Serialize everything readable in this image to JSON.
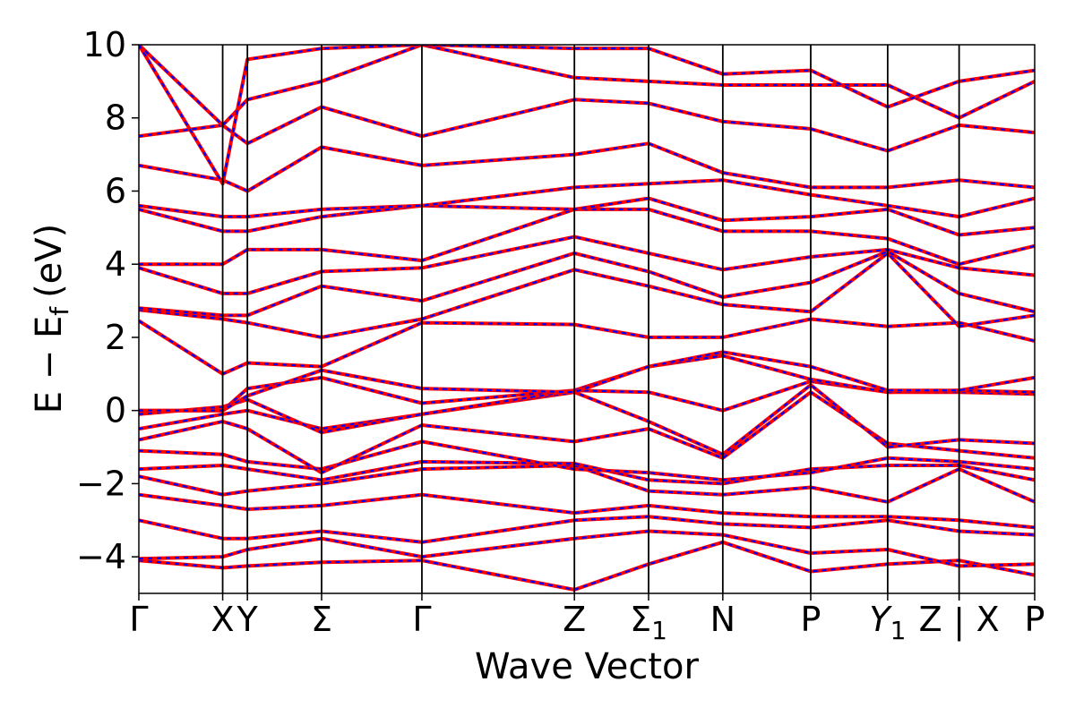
{
  "chart_data": {
    "type": "line",
    "title": "",
    "xlabel": "Wave Vector",
    "ylabel": "E − E_f (eV)",
    "ylabel_parts": {
      "main": "E − E",
      "sub": "f",
      "unit": "(eV)"
    },
    "ylim": [
      -5,
      10
    ],
    "y_ticks": [
      {
        "value": 10,
        "label": "10"
      },
      {
        "value": 8,
        "label": "8"
      },
      {
        "value": 6,
        "label": "6"
      },
      {
        "value": 4,
        "label": "4"
      },
      {
        "value": 2,
        "label": "2"
      },
      {
        "value": 0,
        "label": "0"
      },
      {
        "value": -2,
        "label": "−2"
      },
      {
        "value": -4,
        "label": "−4"
      }
    ],
    "k_path": {
      "range": [
        0,
        3.26
      ],
      "points": [
        {
          "k": 0.0,
          "label": "Γ"
        },
        {
          "k": 0.305,
          "label": "X"
        },
        {
          "k": 0.395,
          "label": "Y"
        },
        {
          "k": 0.665,
          "label": "Σ"
        },
        {
          "k": 1.03,
          "label": "Γ"
        },
        {
          "k": 1.585,
          "label": "Z"
        },
        {
          "k": 1.855,
          "label": "Σ",
          "sub": "1"
        },
        {
          "k": 2.125,
          "label": "N"
        },
        {
          "k": 2.445,
          "label": "P"
        },
        {
          "k": 2.725,
          "label": "Y",
          "sub": "1",
          "italic": true
        },
        {
          "k": 2.985,
          "label": "Z",
          "break_after": true
        },
        {
          "k": 2.985,
          "label": "X"
        },
        {
          "k": 3.26,
          "label": "P"
        }
      ],
      "break_label": "|"
    },
    "series": [
      {
        "name": "",
        "color": "#ff0000",
        "style": "solid"
      },
      {
        "name": "",
        "color": "#0000ff",
        "style": "dashed"
      }
    ],
    "bands": [
      [
        [
          0.0,
          -4.1
        ],
        [
          0.305,
          -4.3
        ],
        [
          0.395,
          -4.25
        ],
        [
          0.665,
          -4.15
        ],
        [
          1.03,
          -4.1
        ],
        [
          1.585,
          -4.9
        ],
        [
          1.855,
          -4.2
        ],
        [
          2.125,
          -3.6
        ],
        [
          2.445,
          -4.4
        ],
        [
          2.725,
          -4.2
        ],
        [
          2.985,
          -4.1
        ],
        [
          3.26,
          -4.5
        ]
      ],
      [
        [
          0.0,
          -4.05
        ],
        [
          0.305,
          -4.0
        ],
        [
          0.395,
          -3.8
        ],
        [
          0.665,
          -3.5
        ],
        [
          1.03,
          -4.0
        ],
        [
          1.585,
          -3.5
        ],
        [
          1.855,
          -3.3
        ],
        [
          2.125,
          -3.4
        ],
        [
          2.445,
          -3.9
        ],
        [
          2.725,
          -3.8
        ],
        [
          2.985,
          -4.25
        ],
        [
          3.26,
          -4.2
        ]
      ],
      [
        [
          0.0,
          -3.0
        ],
        [
          0.305,
          -3.5
        ],
        [
          0.395,
          -3.5
        ],
        [
          0.665,
          -3.3
        ],
        [
          1.03,
          -3.6
        ],
        [
          1.585,
          -3.0
        ],
        [
          1.855,
          -2.9
        ],
        [
          2.125,
          -3.1
        ],
        [
          2.445,
          -3.2
        ],
        [
          2.725,
          -3.0
        ],
        [
          2.985,
          -3.3
        ],
        [
          3.26,
          -3.4
        ]
      ],
      [
        [
          0.0,
          -2.3
        ],
        [
          0.305,
          -2.6
        ],
        [
          0.395,
          -2.7
        ],
        [
          0.665,
          -2.6
        ],
        [
          1.03,
          -2.3
        ],
        [
          1.585,
          -2.8
        ],
        [
          1.855,
          -2.6
        ],
        [
          2.125,
          -2.8
        ],
        [
          2.445,
          -2.9
        ],
        [
          2.725,
          -2.9
        ],
        [
          2.985,
          -3.0
        ],
        [
          3.26,
          -3.2
        ]
      ],
      [
        [
          0.0,
          -1.8
        ],
        [
          0.305,
          -2.3
        ],
        [
          0.395,
          -2.2
        ],
        [
          0.665,
          -2.0
        ],
        [
          1.03,
          -1.6
        ],
        [
          1.585,
          -1.5
        ],
        [
          1.855,
          -2.2
        ],
        [
          2.125,
          -2.3
        ],
        [
          2.445,
          -2.1
        ],
        [
          2.725,
          -2.5
        ],
        [
          2.985,
          -1.6
        ],
        [
          3.26,
          -2.5
        ]
      ],
      [
        [
          0.0,
          -1.6
        ],
        [
          0.305,
          -1.5
        ],
        [
          0.395,
          -1.6
        ],
        [
          0.665,
          -1.9
        ],
        [
          1.03,
          -1.4
        ],
        [
          1.585,
          -1.45
        ],
        [
          1.855,
          -1.9
        ],
        [
          2.125,
          -2.0
        ],
        [
          2.445,
          -1.6
        ],
        [
          2.725,
          -1.5
        ],
        [
          2.985,
          -1.5
        ],
        [
          3.26,
          -1.9
        ]
      ],
      [
        [
          0.0,
          -1.1
        ],
        [
          0.305,
          -1.2
        ],
        [
          0.395,
          -1.4
        ],
        [
          0.665,
          -1.6
        ],
        [
          1.03,
          -0.85
        ],
        [
          1.585,
          -1.6
        ],
        [
          1.855,
          -1.7
        ],
        [
          2.125,
          -1.9
        ],
        [
          2.445,
          -1.7
        ],
        [
          2.725,
          -1.3
        ],
        [
          2.985,
          -1.4
        ],
        [
          3.26,
          -1.6
        ]
      ],
      [
        [
          0.0,
          -0.8
        ],
        [
          0.305,
          -0.3
        ],
        [
          0.395,
          -0.5
        ],
        [
          0.665,
          -1.7
        ],
        [
          1.03,
          -0.4
        ],
        [
          1.585,
          -0.85
        ],
        [
          1.855,
          -0.5
        ],
        [
          2.125,
          -1.3
        ],
        [
          2.445,
          0.5
        ],
        [
          2.725,
          -0.9
        ],
        [
          2.985,
          -1.1
        ],
        [
          3.26,
          -1.3
        ]
      ],
      [
        [
          0.0,
          -0.5
        ],
        [
          0.305,
          -0.1
        ],
        [
          0.395,
          0.0
        ],
        [
          0.665,
          -0.5
        ],
        [
          1.03,
          -0.1
        ],
        [
          1.585,
          0.5
        ],
        [
          1.855,
          -0.3
        ],
        [
          2.125,
          -1.2
        ],
        [
          2.445,
          0.7
        ],
        [
          2.725,
          -1.0
        ],
        [
          2.985,
          -0.8
        ],
        [
          3.26,
          -0.9
        ]
      ],
      [
        [
          0.0,
          -0.1
        ],
        [
          0.305,
          0.1
        ],
        [
          0.395,
          0.3
        ],
        [
          0.665,
          -0.6
        ],
        [
          1.03,
          -0.1
        ],
        [
          1.585,
          0.55
        ],
        [
          1.855,
          0.5
        ],
        [
          2.125,
          0.0
        ],
        [
          2.445,
          0.8
        ],
        [
          2.725,
          0.5
        ],
        [
          2.985,
          0.5
        ],
        [
          3.26,
          0.45
        ]
      ],
      [
        [
          0.0,
          0.0
        ],
        [
          0.305,
          0.0
        ],
        [
          0.395,
          0.6
        ],
        [
          0.665,
          0.9
        ],
        [
          1.03,
          0.2
        ],
        [
          1.585,
          0.55
        ],
        [
          1.855,
          1.2
        ],
        [
          2.125,
          1.5
        ],
        [
          2.445,
          0.85
        ],
        [
          2.725,
          0.5
        ],
        [
          2.985,
          0.55
        ],
        [
          3.26,
          0.5
        ]
      ],
      [
        [
          0.0,
          0.0
        ],
        [
          0.305,
          0.0
        ],
        [
          0.395,
          0.4
        ],
        [
          0.665,
          1.1
        ],
        [
          1.03,
          0.6
        ],
        [
          1.585,
          0.5
        ],
        [
          1.855,
          1.2
        ],
        [
          2.125,
          1.6
        ],
        [
          2.445,
          1.2
        ],
        [
          2.725,
          0.55
        ],
        [
          2.985,
          0.55
        ],
        [
          3.26,
          0.9
        ]
      ],
      [
        [
          0.0,
          2.45
        ],
        [
          0.305,
          1.0
        ],
        [
          0.395,
          1.3
        ],
        [
          0.665,
          1.2
        ],
        [
          1.03,
          2.4
        ],
        [
          1.585,
          2.35
        ],
        [
          1.855,
          2.0
        ],
        [
          2.125,
          2.0
        ],
        [
          2.445,
          2.5
        ],
        [
          2.725,
          2.3
        ],
        [
          2.985,
          2.4
        ],
        [
          3.26,
          1.9
        ]
      ],
      [
        [
          0.0,
          2.75
        ],
        [
          0.305,
          2.5
        ],
        [
          0.395,
          2.4
        ],
        [
          0.665,
          2.0
        ],
        [
          1.03,
          2.5
        ],
        [
          1.585,
          3.85
        ],
        [
          1.855,
          3.4
        ],
        [
          2.125,
          2.9
        ],
        [
          2.445,
          2.7
        ],
        [
          2.725,
          4.3
        ],
        [
          2.985,
          2.3
        ],
        [
          3.26,
          2.6
        ]
      ],
      [
        [
          0.0,
          2.8
        ],
        [
          0.305,
          2.6
        ],
        [
          0.395,
          2.6
        ],
        [
          0.665,
          3.4
        ],
        [
          1.03,
          3.0
        ],
        [
          1.585,
          4.3
        ],
        [
          1.855,
          3.8
        ],
        [
          2.125,
          3.1
        ],
        [
          2.445,
          3.5
        ],
        [
          2.725,
          4.35
        ],
        [
          2.985,
          3.2
        ],
        [
          3.26,
          2.7
        ]
      ],
      [
        [
          0.0,
          3.9
        ],
        [
          0.305,
          3.2
        ],
        [
          0.395,
          3.2
        ],
        [
          0.665,
          3.8
        ],
        [
          1.03,
          3.9
        ],
        [
          1.585,
          4.75
        ],
        [
          1.855,
          4.3
        ],
        [
          2.125,
          3.85
        ],
        [
          2.445,
          4.2
        ],
        [
          2.725,
          4.4
        ],
        [
          2.985,
          3.9
        ],
        [
          3.26,
          3.7
        ]
      ],
      [
        [
          0.0,
          4.0
        ],
        [
          0.305,
          4.0
        ],
        [
          0.395,
          4.4
        ],
        [
          0.665,
          4.4
        ],
        [
          1.03,
          4.1
        ],
        [
          1.585,
          5.5
        ],
        [
          1.855,
          5.5
        ],
        [
          2.125,
          4.9
        ],
        [
          2.445,
          4.9
        ],
        [
          2.725,
          4.7
        ],
        [
          2.985,
          4.0
        ],
        [
          3.26,
          4.5
        ]
      ],
      [
        [
          0.0,
          5.5
        ],
        [
          0.305,
          4.9
        ],
        [
          0.395,
          4.9
        ],
        [
          0.665,
          5.3
        ],
        [
          1.03,
          5.6
        ],
        [
          1.585,
          5.5
        ],
        [
          1.855,
          5.8
        ],
        [
          2.125,
          5.2
        ],
        [
          2.445,
          5.3
        ],
        [
          2.725,
          5.5
        ],
        [
          2.985,
          4.8
        ],
        [
          3.26,
          5.0
        ]
      ],
      [
        [
          0.0,
          5.6
        ],
        [
          0.305,
          5.3
        ],
        [
          0.395,
          5.3
        ],
        [
          0.665,
          5.5
        ],
        [
          1.03,
          5.6
        ],
        [
          1.585,
          6.1
        ],
        [
          1.855,
          6.2
        ],
        [
          2.125,
          6.3
        ],
        [
          2.445,
          5.9
        ],
        [
          2.725,
          5.6
        ],
        [
          2.985,
          5.3
        ],
        [
          3.26,
          5.8
        ]
      ],
      [
        [
          0.0,
          6.7
        ],
        [
          0.305,
          6.3
        ],
        [
          0.395,
          6.0
        ],
        [
          0.665,
          7.2
        ],
        [
          1.03,
          6.7
        ],
        [
          1.585,
          7.0
        ],
        [
          1.855,
          7.3
        ],
        [
          2.125,
          6.5
        ],
        [
          2.445,
          6.1
        ],
        [
          2.725,
          6.1
        ],
        [
          2.985,
          6.3
        ],
        [
          3.26,
          6.1
        ]
      ],
      [
        [
          0.0,
          7.5
        ],
        [
          0.305,
          7.8
        ],
        [
          0.395,
          7.3
        ],
        [
          0.665,
          8.3
        ],
        [
          1.03,
          7.5
        ],
        [
          1.585,
          8.5
        ],
        [
          1.855,
          8.4
        ],
        [
          2.125,
          7.9
        ],
        [
          2.445,
          7.7
        ],
        [
          2.725,
          7.1
        ],
        [
          2.985,
          7.8
        ],
        [
          3.26,
          7.6
        ]
      ],
      [
        [
          0.0,
          10.0
        ],
        [
          0.305,
          7.8
        ],
        [
          0.395,
          8.5
        ],
        [
          0.665,
          9.0
        ],
        [
          1.03,
          10.0
        ],
        [
          1.585,
          9.1
        ],
        [
          1.855,
          9.0
        ],
        [
          2.125,
          8.9
        ],
        [
          2.445,
          8.9
        ],
        [
          2.725,
          8.9
        ],
        [
          2.985,
          8.0
        ],
        [
          3.26,
          9.0
        ]
      ],
      [
        [
          0.0,
          10.0
        ],
        [
          0.305,
          6.2
        ],
        [
          0.395,
          9.6
        ],
        [
          0.665,
          9.9
        ],
        [
          1.03,
          10.0
        ],
        [
          1.585,
          9.9
        ],
        [
          1.855,
          9.9
        ],
        [
          2.125,
          9.2
        ],
        [
          2.445,
          9.3
        ],
        [
          2.725,
          8.3
        ],
        [
          2.985,
          9.0
        ],
        [
          3.26,
          9.3
        ]
      ]
    ]
  }
}
